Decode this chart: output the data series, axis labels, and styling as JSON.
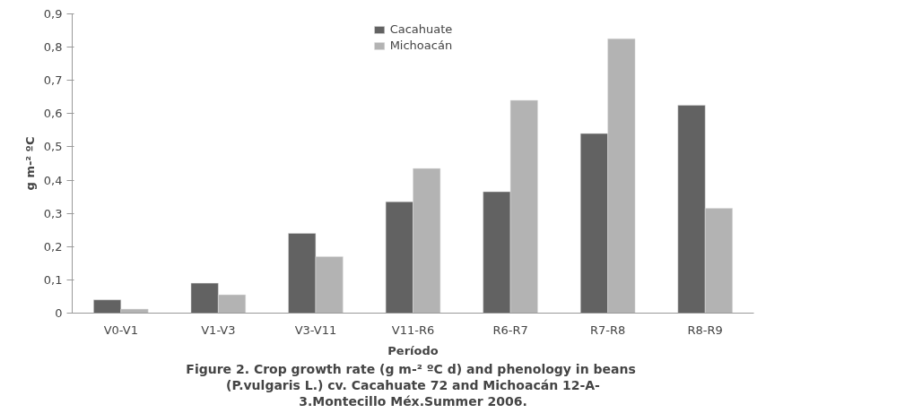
{
  "chart_data": {
    "type": "bar",
    "xlabel": "Período",
    "ylabel": "g m-² ºC",
    "categories": [
      "V0-V1",
      "V1-V3",
      "V3-V11",
      "V11-R6",
      "R6-R7",
      "R7-R8",
      "R8-R9"
    ],
    "series": [
      {
        "name": "Cacahuate",
        "color": "#626262",
        "values": [
          0.04,
          0.09,
          0.24,
          0.335,
          0.365,
          0.54,
          0.625
        ]
      },
      {
        "name": "Michoacán",
        "color": "#b3b3b3",
        "values": [
          0.012,
          0.055,
          0.17,
          0.435,
          0.64,
          0.825,
          0.315
        ]
      }
    ],
    "ylim": [
      0,
      0.9
    ],
    "yticks": [
      0,
      {
        "value": 0.1,
        "label": "0,1"
      },
      {
        "value": 0.2,
        "label": "0,2"
      },
      {
        "value": 0.3,
        "label": "0,3"
      },
      {
        "value": 0.4,
        "label": "0,4"
      },
      {
        "value": 0.5,
        "label": "0,5"
      },
      {
        "value": 0.6,
        "label": "0,6"
      },
      {
        "value": 0.7,
        "label": "0,7"
      },
      {
        "value": 0.8,
        "label": "0,8"
      },
      {
        "value": 0.9,
        "label": "0,9"
      }
    ],
    "grid": false,
    "legend": "top",
    "annotations": [
      "Figure 2. Crop growth rate (g m-² ºC d) and phenology  in beans",
      "(P.vulgaris L.) cv. Cacahuate 72 and Michoacán 12-A-",
      "3.Montecillo Méx.Summer 2006."
    ]
  }
}
